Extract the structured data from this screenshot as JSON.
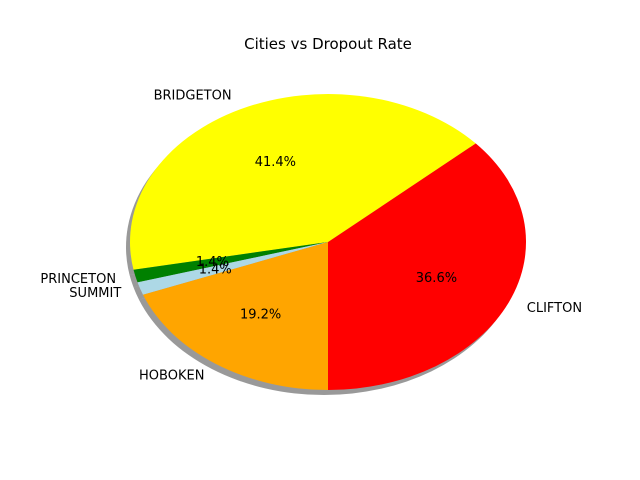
{
  "chart_data": {
    "type": "pie",
    "title": "Cities vs Dropout Rate",
    "start_angle_deg": 270,
    "direction": "counterclockwise",
    "shadow": true,
    "slices": [
      {
        "label": "CLIFTON",
        "value": 36.6,
        "pct_label": "36.6%",
        "color": "#ff0000"
      },
      {
        "label": "BRIDGETON",
        "value": 41.4,
        "pct_label": "41.4%",
        "color": "#ffff00"
      },
      {
        "label": "PRINCETON",
        "value": 1.4,
        "pct_label": "1.4%",
        "color": "#008000"
      },
      {
        "label": "SUMMIT",
        "value": 1.4,
        "pct_label": "1.4%",
        "color": "#add8e6"
      },
      {
        "label": "HOBOKEN",
        "value": 19.2,
        "pct_label": "19.2%",
        "color": "#ffa500"
      }
    ]
  }
}
